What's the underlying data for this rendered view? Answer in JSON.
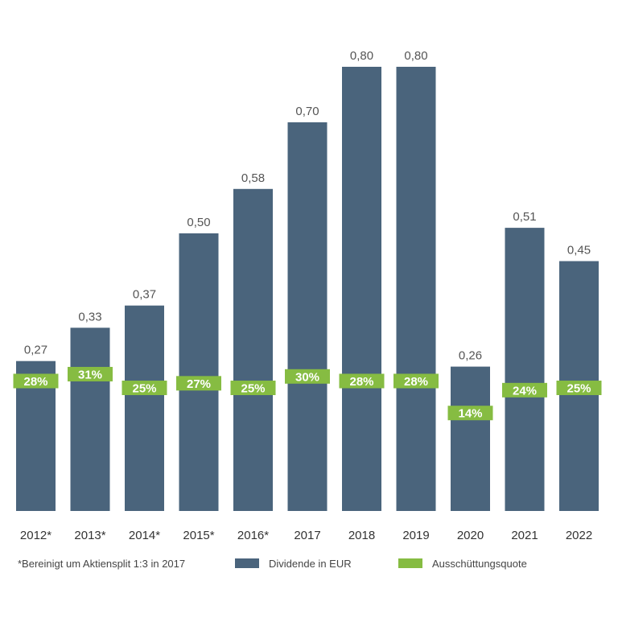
{
  "colors": {
    "bar": "#4a647c",
    "ratio": "#86bc42"
  },
  "chart_data": {
    "type": "bar",
    "categories": [
      "2012*",
      "2013*",
      "2014*",
      "2015*",
      "2016*",
      "2017",
      "2018",
      "2019",
      "2020",
      "2021",
      "2022"
    ],
    "series": [
      {
        "name": "Dividende in EUR",
        "values": [
          0.27,
          0.33,
          0.37,
          0.5,
          0.58,
          0.7,
          0.8,
          0.8,
          0.26,
          0.51,
          0.45
        ]
      },
      {
        "name": "Ausschüttungsquote",
        "values": [
          28,
          31,
          25,
          27,
          25,
          30,
          28,
          28,
          14,
          24,
          25
        ]
      }
    ],
    "value_labels": [
      "0,27",
      "0,33",
      "0,37",
      "0,50",
      "0,58",
      "0,70",
      "0,80",
      "0,80",
      "0,26",
      "0,51",
      "0,45"
    ],
    "ratio_labels": [
      "28%",
      "31%",
      "25%",
      "27%",
      "25%",
      "30%",
      "28%",
      "28%",
      "14%",
      "24%",
      "25%"
    ],
    "ylim": [
      0,
      0.8
    ],
    "grid": false,
    "legend_position": "bottom",
    "title": "",
    "xlabel": "",
    "ylabel": ""
  },
  "legend": {
    "footnote": "*Bereinigt um Aktiensplit 1:3 in 2017",
    "dividend_label": "Dividende in EUR",
    "ratio_label": "Ausschüttungsquote"
  }
}
